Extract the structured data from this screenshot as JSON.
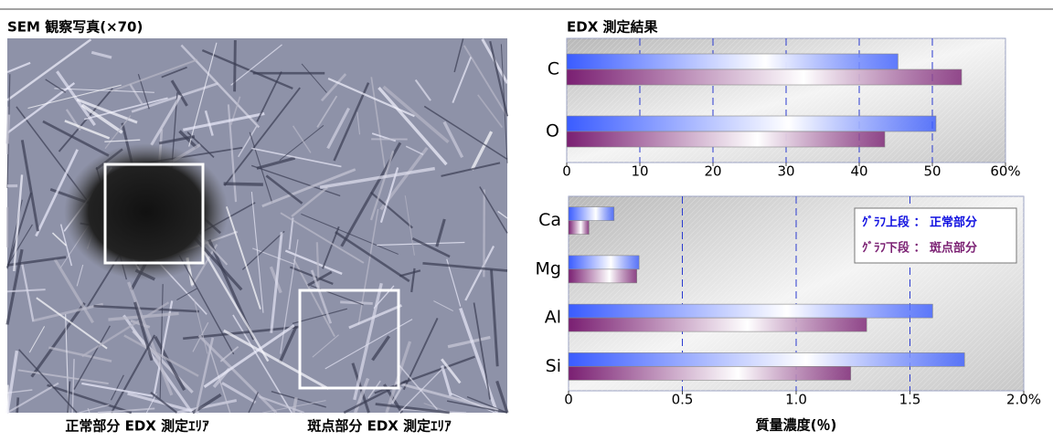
{
  "sem": {
    "title": "SEM 観察写真(×70)",
    "captions": [
      "正常部分 EDX 測定ｴﾘｱ",
      "斑点部分 EDX 測定ｴﾘｱ"
    ]
  },
  "chart_data": [
    {
      "type": "bar",
      "orientation": "horizontal",
      "title": "EDX 測定結果",
      "categories": [
        "C",
        "O"
      ],
      "series": [
        {
          "color": "#3a5cff",
          "values": [
            45.3,
            50.5
          ]
        },
        {
          "color": "#7a1f72",
          "values": [
            54,
            43.5
          ]
        }
      ],
      "xlim": [
        0,
        60
      ],
      "xticks": [
        0,
        10,
        20,
        30,
        40,
        50,
        {
          "value": 60,
          "label": "60%"
        }
      ],
      "grid": true
    },
    {
      "type": "bar",
      "orientation": "horizontal",
      "xlabel": "質量濃度(％)",
      "categories": [
        "Ca",
        "Mg",
        "Al",
        "Si"
      ],
      "series": [
        {
          "name": "ｸﾞﾗﾌ上段 ： 正常部分",
          "color": "#3a5cff",
          "values": [
            0.2,
            0.31,
            1.6,
            1.74
          ]
        },
        {
          "name": "ｸﾞﾗﾌ下段 ： 斑点部分",
          "color": "#7a1f72",
          "values": [
            0.09,
            0.3,
            1.31,
            1.24
          ]
        }
      ],
      "xlim": [
        0,
        2
      ],
      "xticks": [
        0,
        0.5,
        {
          "value": 1,
          "label": "1.0"
        },
        1.5,
        {
          "value": 2,
          "label": "2.0%"
        }
      ],
      "grid": true,
      "legend": "top-right"
    }
  ]
}
